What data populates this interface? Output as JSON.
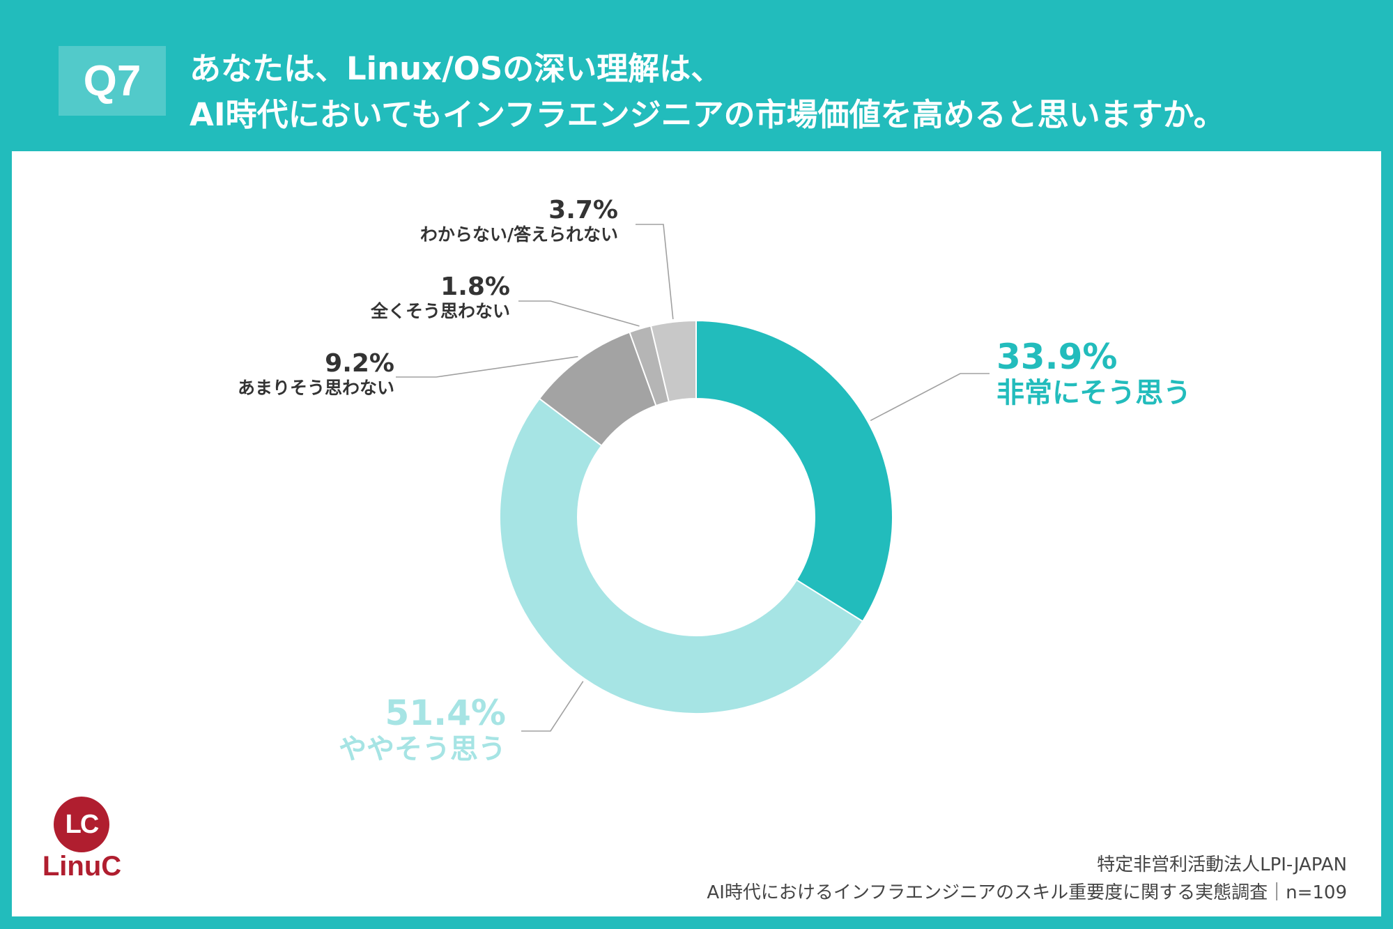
{
  "header": {
    "badge": "Q7",
    "title_line1": "あなたは、Linux/OSの深い理解は、",
    "title_line2": "AI時代においてもインフラエンジニアの市場価値を高めると思いますか。"
  },
  "colors": {
    "background": "#22bcbc",
    "panel": "#ffffff",
    "logo": "#b01e2f"
  },
  "chart_data": {
    "type": "pie",
    "donut": true,
    "order": "clockwise-from-top",
    "slices": [
      {
        "label": "非常にそう思う",
        "value": 33.9,
        "pct_label": "33.9%",
        "color": "#22bcbc"
      },
      {
        "label": "ややそう思う",
        "value": 51.4,
        "pct_label": "51.4%",
        "color": "#a6e4e4"
      },
      {
        "label": "あまりそう思わない",
        "value": 9.2,
        "pct_label": "9.2%",
        "color": "#a3a3a3"
      },
      {
        "label": "全くそう思わない",
        "value": 1.8,
        "pct_label": "1.8%",
        "color": "#b5b5b5"
      },
      {
        "label": "わからない/答えられない",
        "value": 3.7,
        "pct_label": "3.7%",
        "color": "#c8c8c8"
      }
    ]
  },
  "logo": {
    "mark": "LC",
    "name": "LinuC"
  },
  "footer": {
    "org": "特定非営利活動法人LPI-JAPAN",
    "survey": "AI時代におけるインフラエンジニアのスキル重要度に関する実態調査｜n=109"
  }
}
